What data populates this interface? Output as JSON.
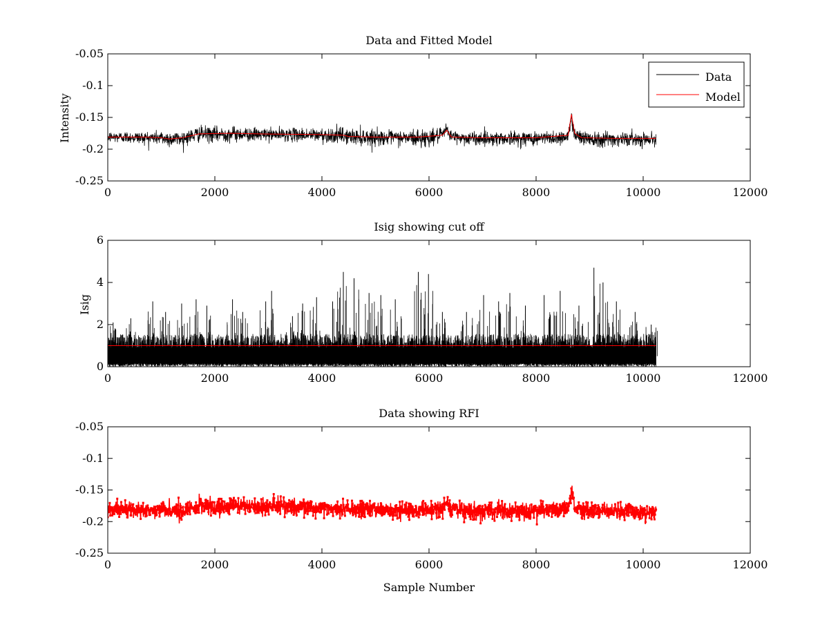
{
  "colors": {
    "data": "#000000",
    "model": "#ff0000",
    "rfi": "#ff0000"
  },
  "chart_data": [
    {
      "type": "line",
      "title": "Data and Fitted Model",
      "xlabel": "",
      "ylabel": "Intensity",
      "xlim": [
        0,
        12000
      ],
      "ylim": [
        -0.25,
        -0.05
      ],
      "y_reversed": true,
      "xticks": [
        0,
        2000,
        4000,
        6000,
        8000,
        10000,
        12000
      ],
      "xtick_labels": [
        "0",
        "2000",
        "4000",
        "6000",
        "8000",
        "10000",
        "12000"
      ],
      "yticks": [
        -0.05,
        -0.1,
        -0.15,
        -0.2,
        -0.25
      ],
      "ytick_labels": [
        "-0.05",
        "-0.1",
        "-0.15",
        "-0.2",
        "-0.25"
      ],
      "grid": false,
      "legend": "top-right",
      "series": [
        {
          "name": "Data",
          "color": "#000000",
          "style": "noisy-line",
          "n_samples": 10240,
          "x": [
            0,
            300,
            700,
            1000,
            1150,
            1400,
            1700,
            2000,
            2300,
            2800,
            3400,
            4000,
            4400,
            4500,
            4800,
            5200,
            5600,
            5800,
            6000,
            6250,
            6330,
            6420,
            6700,
            7000,
            7500,
            8000,
            8400,
            8600,
            8660,
            8720,
            8850,
            9100,
            9500,
            10000,
            10240
          ],
          "center": [
            -0.181,
            -0.181,
            -0.182,
            -0.182,
            -0.184,
            -0.183,
            -0.176,
            -0.177,
            -0.176,
            -0.177,
            -0.177,
            -0.178,
            -0.179,
            -0.18,
            -0.181,
            -0.182,
            -0.182,
            -0.183,
            -0.182,
            -0.178,
            -0.168,
            -0.18,
            -0.183,
            -0.183,
            -0.183,
            -0.183,
            -0.182,
            -0.18,
            -0.15,
            -0.176,
            -0.182,
            -0.183,
            -0.184,
            -0.184,
            -0.184
          ],
          "noise_amplitude": [
            0.008,
            0.008,
            0.009,
            0.01,
            0.011,
            0.01,
            0.011,
            0.011,
            0.011,
            0.009,
            0.009,
            0.01,
            0.012,
            0.011,
            0.012,
            0.01,
            0.01,
            0.014,
            0.012,
            0.009,
            0.008,
            0.009,
            0.009,
            0.01,
            0.01,
            0.01,
            0.01,
            0.009,
            0.01,
            0.009,
            0.011,
            0.012,
            0.01,
            0.009,
            0.009
          ],
          "y_min": -0.221,
          "y_max": -0.134
        },
        {
          "name": "Model",
          "color": "#ff0000",
          "style": "line",
          "x": [
            0,
            700,
            1000,
            1150,
            1400,
            1700,
            2300,
            2800,
            4000,
            4400,
            4500,
            5000,
            5800,
            6250,
            6330,
            6420,
            7000,
            8000,
            8600,
            8660,
            8720,
            8850,
            9500,
            10240
          ],
          "y": [
            -0.181,
            -0.181,
            -0.182,
            -0.184,
            -0.182,
            -0.176,
            -0.175,
            -0.176,
            -0.177,
            -0.178,
            -0.18,
            -0.181,
            -0.181,
            -0.178,
            -0.17,
            -0.181,
            -0.182,
            -0.182,
            -0.178,
            -0.145,
            -0.175,
            -0.182,
            -0.183,
            -0.183
          ]
        }
      ]
    },
    {
      "type": "line",
      "title": "Isig showing cut off",
      "xlabel": "",
      "ylabel": "Isig",
      "xlim": [
        0,
        12000
      ],
      "ylim": [
        0,
        6
      ],
      "xticks": [
        0,
        2000,
        4000,
        6000,
        8000,
        10000,
        12000
      ],
      "xtick_labels": [
        "0",
        "2000",
        "4000",
        "6000",
        "8000",
        "10000",
        "12000"
      ],
      "yticks": [
        0,
        2,
        4,
        6
      ],
      "ytick_labels": [
        "0",
        "2",
        "4",
        "6"
      ],
      "grid": false,
      "series": [
        {
          "color": "#000000",
          "style": "noisy-line",
          "n_samples": 10240,
          "x_range": [
            0,
            10240
          ],
          "base_range": [
            0,
            1.5
          ],
          "spikes": [
            {
              "x": 100,
              "y": 2.1
            },
            {
              "x": 430,
              "y": 2.3
            },
            {
              "x": 840,
              "y": 3.1
            },
            {
              "x": 1080,
              "y": 2.6
            },
            {
              "x": 1380,
              "y": 3.0
            },
            {
              "x": 1650,
              "y": 3.2
            },
            {
              "x": 1850,
              "y": 2.9
            },
            {
              "x": 2330,
              "y": 3.2
            },
            {
              "x": 2520,
              "y": 2.6
            },
            {
              "x": 2950,
              "y": 3.1
            },
            {
              "x": 3060,
              "y": 3.6
            },
            {
              "x": 3450,
              "y": 2.4
            },
            {
              "x": 3640,
              "y": 3.0
            },
            {
              "x": 3900,
              "y": 3.3
            },
            {
              "x": 4200,
              "y": 3.1
            },
            {
              "x": 4400,
              "y": 4.5
            },
            {
              "x": 4600,
              "y": 4.2
            },
            {
              "x": 4880,
              "y": 3.5
            },
            {
              "x": 5100,
              "y": 3.4
            },
            {
              "x": 5370,
              "y": 3.2
            },
            {
              "x": 5800,
              "y": 4.5
            },
            {
              "x": 5990,
              "y": 4.4
            },
            {
              "x": 6250,
              "y": 2.6
            },
            {
              "x": 6700,
              "y": 2.6
            },
            {
              "x": 7020,
              "y": 3.4
            },
            {
              "x": 7300,
              "y": 3.1
            },
            {
              "x": 7510,
              "y": 3.5
            },
            {
              "x": 7800,
              "y": 2.9
            },
            {
              "x": 8150,
              "y": 3.4
            },
            {
              "x": 8450,
              "y": 3.6
            },
            {
              "x": 8800,
              "y": 2.9
            },
            {
              "x": 9080,
              "y": 4.7
            },
            {
              "x": 9250,
              "y": 4.0
            },
            {
              "x": 9500,
              "y": 3.1
            },
            {
              "x": 9850,
              "y": 2.6
            },
            {
              "x": 10150,
              "y": 2.0
            }
          ]
        },
        {
          "color": "#ff0000",
          "style": "line",
          "x": [
            0,
            10240
          ],
          "y": [
            1.0,
            1.0
          ]
        }
      ]
    },
    {
      "type": "scatter",
      "title": "Data showing RFI",
      "xlabel": "Sample Number",
      "ylabel": "",
      "xlim": [
        0,
        12000
      ],
      "ylim": [
        -0.25,
        -0.05
      ],
      "y_reversed": true,
      "xticks": [
        0,
        2000,
        4000,
        6000,
        8000,
        10000,
        12000
      ],
      "xtick_labels": [
        "0",
        "2000",
        "4000",
        "6000",
        "8000",
        "10000",
        "12000"
      ],
      "yticks": [
        -0.05,
        -0.1,
        -0.15,
        -0.2,
        -0.25
      ],
      "ytick_labels": [
        "-0.05",
        "-0.1",
        "-0.15",
        "-0.2",
        "-0.25"
      ],
      "grid": false,
      "series": [
        {
          "color": "#ff0000",
          "style": "dots",
          "x_range": [
            0,
            10240
          ],
          "center": [
            -0.181,
            -0.181,
            -0.182,
            -0.182,
            -0.184,
            -0.183,
            -0.176,
            -0.177,
            -0.176,
            -0.177,
            -0.177,
            -0.178,
            -0.179,
            -0.18,
            -0.181,
            -0.182,
            -0.182,
            -0.183,
            -0.182,
            -0.178,
            -0.168,
            -0.18,
            -0.183,
            -0.183,
            -0.183,
            -0.183,
            -0.182,
            -0.18,
            -0.15,
            -0.176,
            -0.182,
            -0.183,
            -0.184,
            -0.184,
            -0.184
          ],
          "center_x": [
            0,
            300,
            700,
            1000,
            1150,
            1400,
            1700,
            2000,
            2300,
            2800,
            3400,
            4000,
            4400,
            4500,
            4800,
            5200,
            5600,
            5800,
            6000,
            6250,
            6330,
            6420,
            6700,
            7000,
            7500,
            8000,
            8400,
            8600,
            8660,
            8720,
            8850,
            9100,
            9500,
            10000,
            10240
          ],
          "y_min": -0.212,
          "y_max": -0.134
        }
      ]
    }
  ]
}
